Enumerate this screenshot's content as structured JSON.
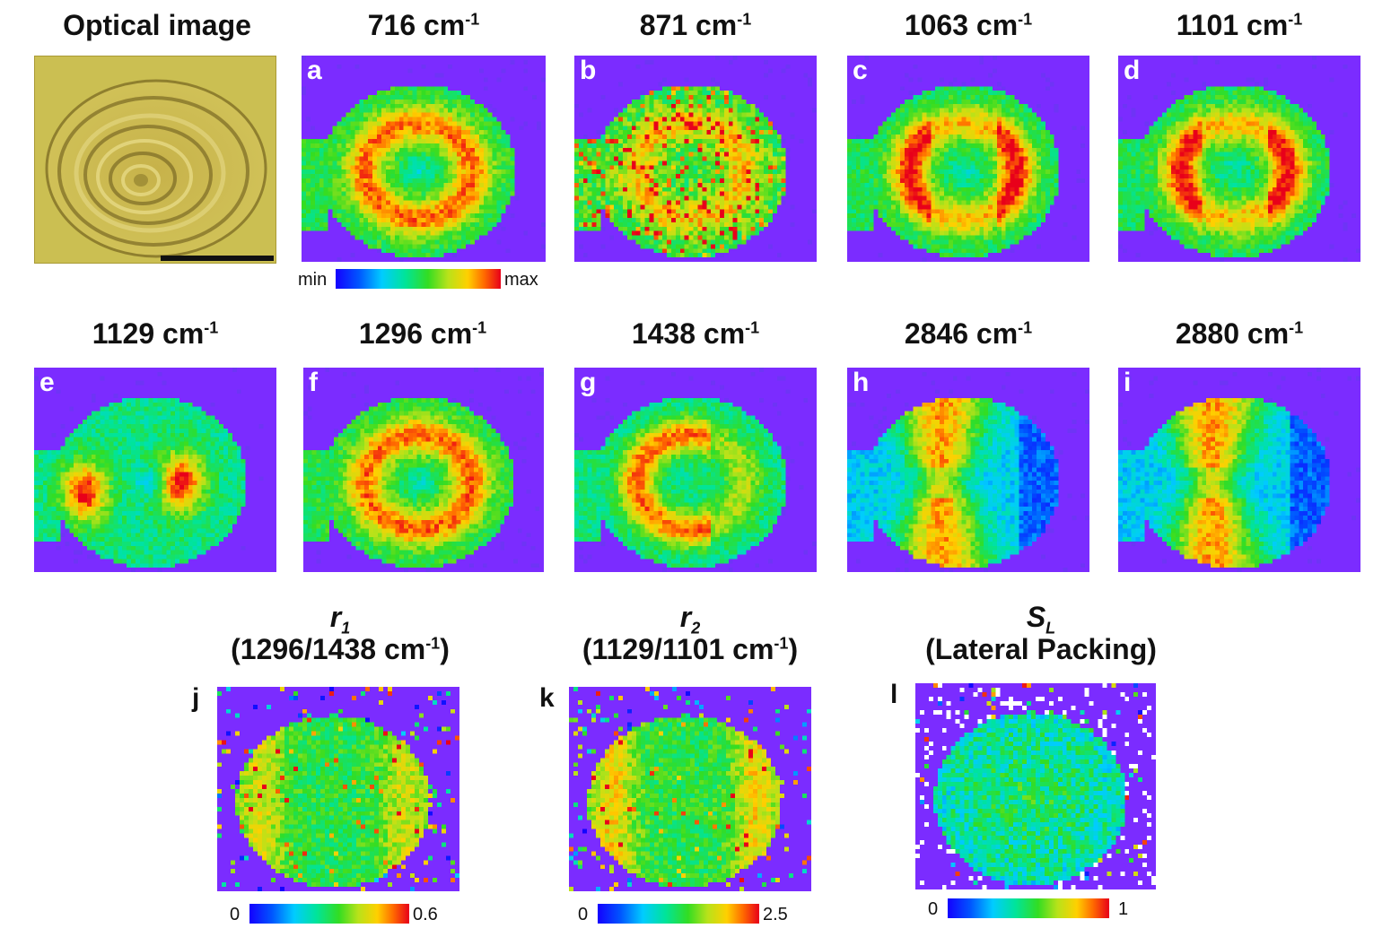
{
  "figure": {
    "optical_title": "Optical image",
    "unit": "cm",
    "unit_exp": "-1",
    "colorbar_top": {
      "min_label": "min",
      "max_label": "max"
    },
    "panels": [
      {
        "letter": "a",
        "wavenumber": "716"
      },
      {
        "letter": "b",
        "wavenumber": "871"
      },
      {
        "letter": "c",
        "wavenumber": "1063"
      },
      {
        "letter": "d",
        "wavenumber": "1101"
      },
      {
        "letter": "e",
        "wavenumber": "1129"
      },
      {
        "letter": "f",
        "wavenumber": "1296"
      },
      {
        "letter": "g",
        "wavenumber": "1438"
      },
      {
        "letter": "h",
        "wavenumber": "2846"
      },
      {
        "letter": "i",
        "wavenumber": "2880"
      }
    ],
    "ratio_panels": [
      {
        "letter": "j",
        "symbol": "r",
        "sub": "1",
        "line2": "(1296/1438 cm",
        "line2_exp": "-1",
        "line2_end": ")",
        "cmin": "0",
        "cmax": "0.6"
      },
      {
        "letter": "k",
        "symbol": "r",
        "sub": "2",
        "line2": "(1129/1101 cm",
        "line2_exp": "-1",
        "line2_end": ")",
        "cmin": "0",
        "cmax": "2.5"
      },
      {
        "letter": "l",
        "symbol": "S",
        "sub": "L",
        "line2": "(Lateral Packing)",
        "line2_exp": "",
        "line2_end": "",
        "cmin": "0",
        "cmax": "1"
      }
    ]
  }
}
